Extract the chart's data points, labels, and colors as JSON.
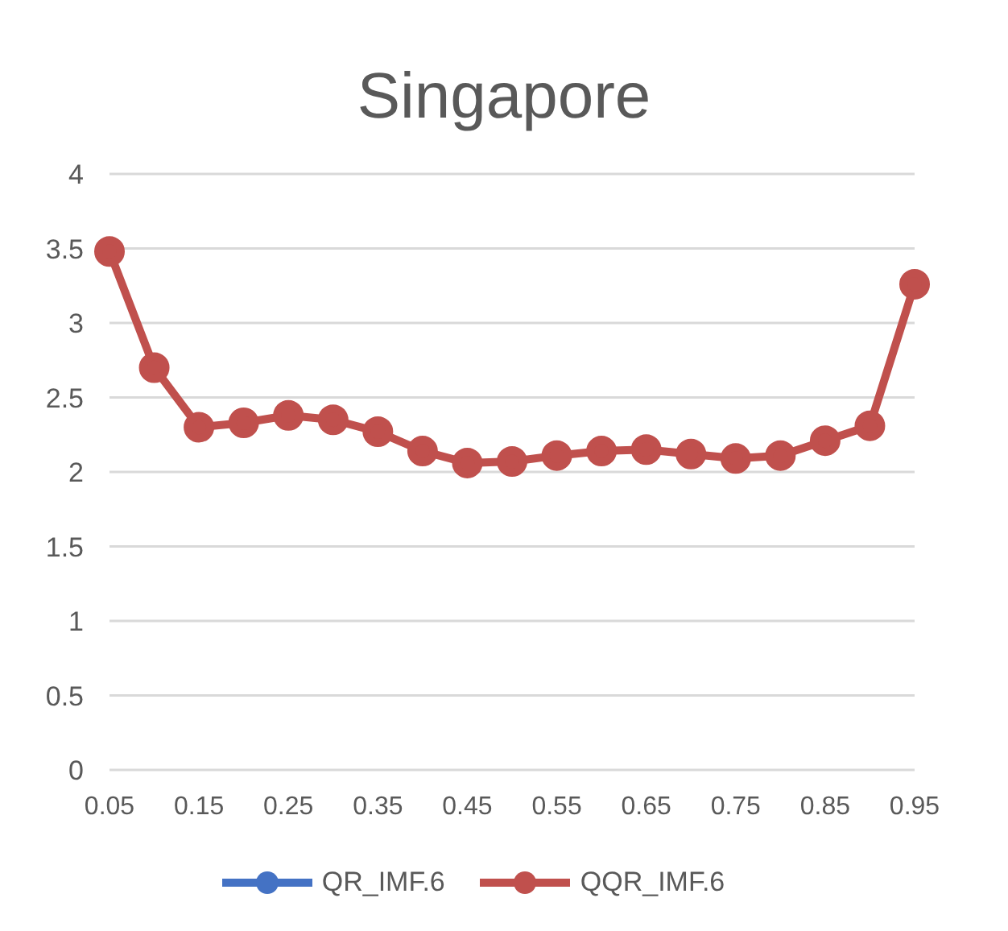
{
  "chart_data": {
    "type": "line",
    "title": "Singapore",
    "categories": [
      "0.05",
      null,
      "0.15",
      null,
      "0.25",
      null,
      "0.35",
      null,
      "0.45",
      null,
      "0.55",
      null,
      "0.65",
      null,
      "0.75",
      null,
      "0.85",
      null,
      "0.95"
    ],
    "series": [
      {
        "name": "QR_IMF.6",
        "color": "#4472c4",
        "values": [
          null,
          null,
          null,
          null,
          null,
          null,
          null,
          null,
          null,
          null,
          null,
          null,
          null,
          null,
          null,
          null,
          null,
          null,
          null
        ]
      },
      {
        "name": "QQR_IMF.6",
        "color": "#c0504d",
        "values": [
          3.48,
          2.7,
          2.3,
          2.33,
          2.38,
          2.35,
          2.27,
          2.14,
          2.06,
          2.07,
          2.11,
          2.14,
          2.15,
          2.12,
          2.09,
          2.11,
          2.21,
          2.31,
          3.26
        ]
      }
    ],
    "ylim": [
      0,
      4
    ],
    "yticks": [
      0,
      0.5,
      1,
      1.5,
      2,
      2.5,
      3,
      3.5,
      4
    ],
    "grid": "y",
    "legend": "bottom",
    "marker": "circle",
    "line_style": "solid"
  }
}
